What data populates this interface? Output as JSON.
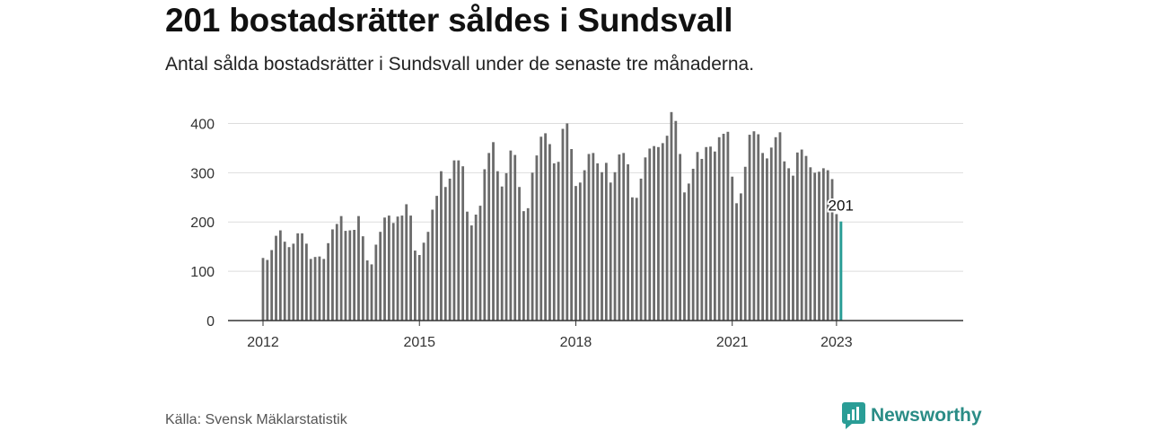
{
  "title": "201 bostadsrätter såldes i Sundsvall",
  "subtitle": "Antal sålda bostadsrätter i Sundsvall under de senaste tre månaderna.",
  "source": "Källa: Svensk Mäklarstatistik",
  "brand": {
    "name": "Newsworthy",
    "icon": "newsworthy-logo-icon"
  },
  "colors": {
    "bar": "#6b6b6b",
    "highlight": "#2a9d96",
    "grid": "#dddddd",
    "axis": "#333333"
  },
  "chart_data": {
    "type": "bar",
    "x_start": "2012-01",
    "x_tick_labels": [
      "2012",
      "2015",
      "2018",
      "2021",
      "2023"
    ],
    "x_tick_positions": [
      "2012-01",
      "2015-01",
      "2018-01",
      "2021-01",
      "2023-01"
    ],
    "y_ticks": [
      "0",
      "100",
      "200",
      "300",
      "400"
    ],
    "ylim": [
      0,
      450
    ],
    "grid": true,
    "highlight_label": "201",
    "values": [
      127,
      123,
      143,
      172,
      183,
      160,
      149,
      156,
      177,
      177,
      156,
      125,
      129,
      130,
      125,
      157,
      185,
      196,
      212,
      182,
      183,
      184,
      212,
      171,
      122,
      114,
      154,
      180,
      209,
      213,
      198,
      211,
      213,
      236,
      213,
      142,
      133,
      158,
      180,
      225,
      253,
      303,
      271,
      288,
      325,
      325,
      313,
      221,
      193,
      215,
      233,
      307,
      340,
      362,
      303,
      272,
      299,
      345,
      336,
      271,
      222,
      228,
      300,
      335,
      373,
      380,
      358,
      319,
      322,
      389,
      400,
      348,
      273,
      280,
      305,
      338,
      340,
      319,
      301,
      320,
      280,
      301,
      337,
      340,
      317,
      250,
      249,
      288,
      331,
      349,
      354,
      352,
      360,
      375,
      423,
      405,
      338,
      260,
      278,
      308,
      342,
      328,
      352,
      353,
      343,
      372,
      379,
      383,
      292,
      238,
      258,
      312,
      377,
      384,
      378,
      340,
      329,
      351,
      372,
      382,
      323,
      309,
      294,
      341,
      347,
      334,
      311,
      300,
      302,
      309,
      305,
      287,
      216,
      201
    ]
  }
}
